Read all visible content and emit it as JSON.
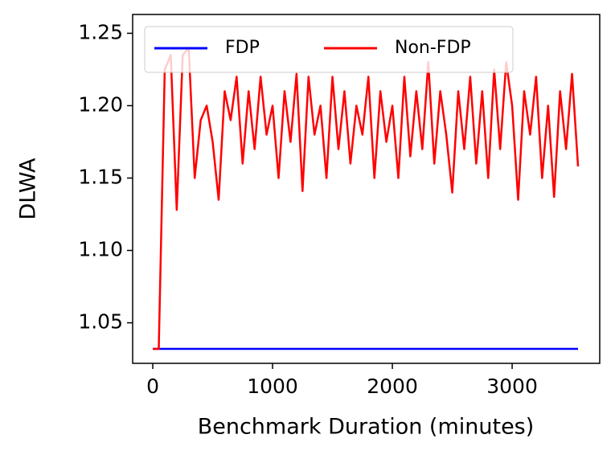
{
  "chart_data": {
    "type": "line",
    "xlabel": "Benchmark Duration (minutes)",
    "ylabel": "DLWA",
    "xlim": [
      -168,
      3731
    ],
    "ylim": [
      1.022,
      1.263
    ],
    "xticks": [
      0,
      1000,
      2000,
      3000
    ],
    "yticks": [
      1.05,
      {
        "value": 1.1,
        "label": "1.10"
      },
      1.15,
      {
        "value": 1.2,
        "label": "1.20"
      },
      1.25
    ],
    "grid": false,
    "legend": "upper left",
    "series": [
      {
        "name": "FDP",
        "color": "#0000ff",
        "x": [
          0,
          3550
        ],
        "values": [
          1.032,
          1.032
        ]
      },
      {
        "name": "Non-FDP",
        "color": "#ff0000",
        "x": [
          0,
          50,
          100,
          150,
          200,
          250,
          300,
          350,
          400,
          450,
          500,
          550,
          600,
          650,
          700,
          750,
          800,
          850,
          900,
          950,
          1000,
          1050,
          1100,
          1150,
          1200,
          1250,
          1300,
          1350,
          1400,
          1450,
          1500,
          1550,
          1600,
          1650,
          1700,
          1750,
          1800,
          1850,
          1900,
          1950,
          2000,
          2050,
          2100,
          2150,
          2200,
          2250,
          2300,
          2350,
          2400,
          2450,
          2500,
          2550,
          2600,
          2650,
          2700,
          2750,
          2800,
          2850,
          2900,
          2950,
          3000,
          3050,
          3100,
          3150,
          3200,
          3250,
          3300,
          3350,
          3400,
          3450,
          3500,
          3550
        ],
        "values": [
          1.032,
          1.032,
          1.225,
          1.235,
          1.128,
          1.235,
          1.24,
          1.15,
          1.19,
          1.2,
          1.175,
          1.135,
          1.21,
          1.19,
          1.22,
          1.16,
          1.21,
          1.17,
          1.22,
          1.18,
          1.2,
          1.15,
          1.21,
          1.175,
          1.222,
          1.141,
          1.22,
          1.18,
          1.2,
          1.15,
          1.22,
          1.17,
          1.21,
          1.16,
          1.2,
          1.18,
          1.22,
          1.15,
          1.21,
          1.175,
          1.2,
          1.15,
          1.22,
          1.165,
          1.21,
          1.17,
          1.23,
          1.16,
          1.21,
          1.18,
          1.14,
          1.21,
          1.17,
          1.22,
          1.16,
          1.21,
          1.15,
          1.225,
          1.17,
          1.23,
          1.2,
          1.135,
          1.21,
          1.18,
          1.22,
          1.15,
          1.2,
          1.137,
          1.21,
          1.17,
          1.222,
          1.158
        ]
      }
    ]
  }
}
